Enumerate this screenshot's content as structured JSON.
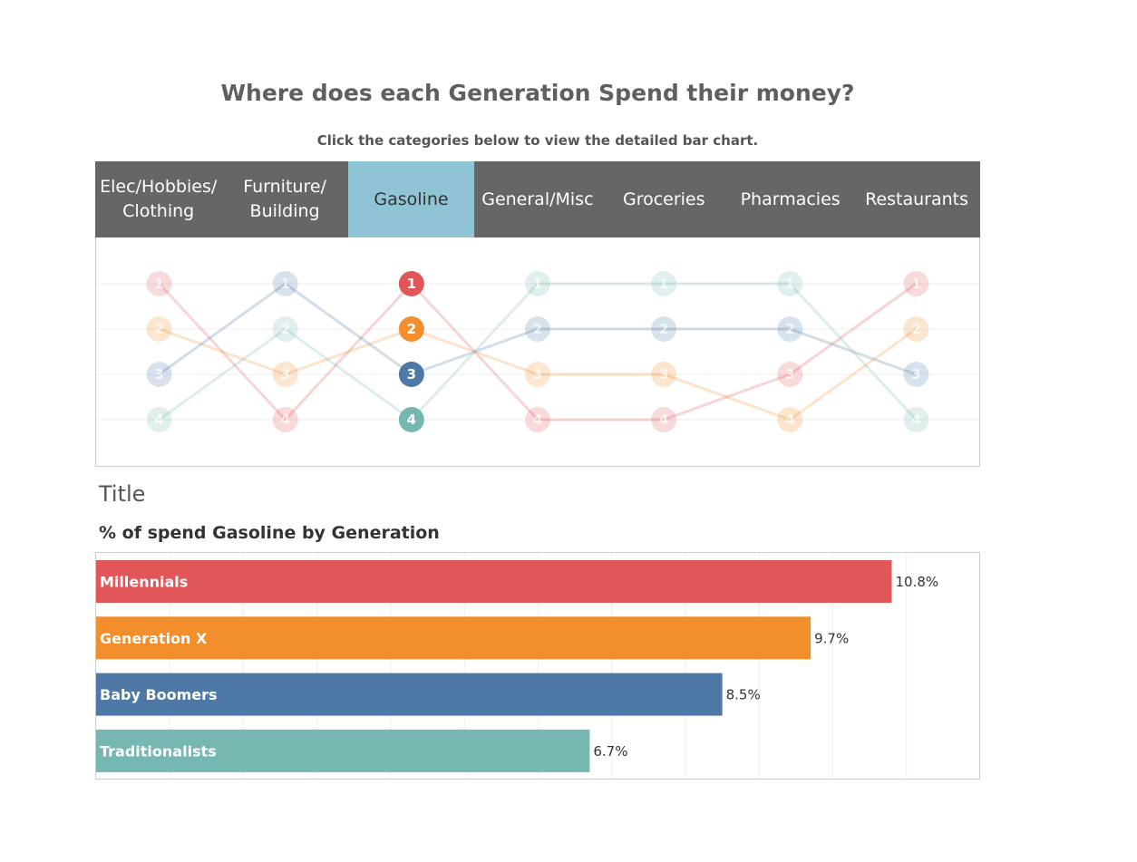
{
  "header": {
    "title": "Where does each Generation Spend their money?",
    "subtitle": "Click the categories below to view the detailed bar chart."
  },
  "categories": [
    {
      "line1": "Elec/Hobbies/",
      "line2": "Clothing",
      "selected": false
    },
    {
      "line1": "Furniture/",
      "line2": "Building",
      "selected": false
    },
    {
      "line1": "Gasoline",
      "line2": "",
      "selected": true
    },
    {
      "line1": "General/Misc",
      "line2": "",
      "selected": false
    },
    {
      "line1": "Groceries",
      "line2": "",
      "selected": false
    },
    {
      "line1": "Pharmacies",
      "line2": "",
      "selected": false
    },
    {
      "line1": "Restaurants",
      "line2": "",
      "selected": false
    }
  ],
  "chart_data": [
    {
      "type": "line",
      "selected_category": "Gasoline",
      "categories": [
        "Elec/Hobbies/ Clothing",
        "Furniture/ Building",
        "Gasoline",
        "General/Misc",
        "Groceries",
        "Pharmacies",
        "Restaurants"
      ],
      "rank_range": [
        1,
        4
      ],
      "series": [
        {
          "name": "Millennials",
          "color": "#e15759",
          "ranks": [
            1,
            4,
            1,
            4,
            4,
            3,
            1
          ]
        },
        {
          "name": "Generation X",
          "color": "#f28e2b",
          "ranks": [
            2,
            3,
            2,
            3,
            3,
            4,
            2
          ]
        },
        {
          "name": "Baby Boomers",
          "color": "#4e79a7",
          "ranks": [
            3,
            1,
            3,
            2,
            2,
            2,
            3
          ]
        },
        {
          "name": "Traditionalists",
          "color": "#76b7b2",
          "ranks": [
            4,
            2,
            4,
            1,
            1,
            1,
            4
          ]
        }
      ]
    },
    {
      "type": "bar",
      "title": "% of spend Gasoline by Generation",
      "categories": [
        "Millennials",
        "Generation X",
        "Baby Boomers",
        "Traditionalists"
      ],
      "values": [
        10.8,
        9.7,
        8.5,
        6.7
      ],
      "value_labels": [
        "10.8%",
        "9.7%",
        "8.5%",
        "6.7%"
      ],
      "colors": [
        "#e15759",
        "#f28e2b",
        "#4e79a7",
        "#76b7b2"
      ],
      "xlim": [
        0,
        12
      ],
      "grid": true
    }
  ],
  "placeholder_title": "Title"
}
